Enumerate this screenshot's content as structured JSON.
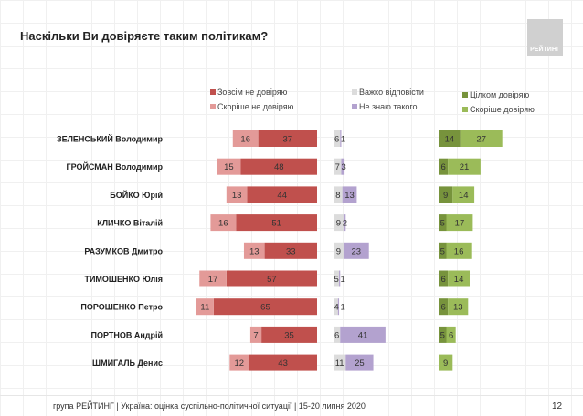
{
  "title": "Наскільки Ви довіряєте таким політикам?",
  "logo_text": "РЕЙТИНГ",
  "footer": "група РЕЙТИНГ |  Україна: оцінка суспільно-політичної  ситуації  | 15-20 липня  2020",
  "page_number": "12",
  "chart_data": {
    "type": "bar",
    "orientation": "horizontal",
    "stacked": true,
    "categories": [
      "ЗЕЛЕНСЬКИЙ Володимир",
      "ГРОЙСМАН Володимир",
      "БОЙКО Юрій",
      "КЛИЧКО Віталій",
      "РАЗУМКОВ Дмитро",
      "ТИМОШЕНКО Юлія",
      "ПОРОШЕНКО Петро",
      "ПОРТНОВ Андрій",
      "ШМИГАЛЬ Денис"
    ],
    "series": [
      {
        "name": "Зовсім не довіряю",
        "group": "distrust",
        "color": "#c0504d",
        "values": [
          37,
          48,
          44,
          51,
          33,
          57,
          65,
          35,
          43
        ]
      },
      {
        "name": "Скоріше не довіряю",
        "group": "distrust",
        "color": "#e39a98",
        "values": [
          16,
          15,
          13,
          16,
          13,
          17,
          11,
          7,
          12
        ]
      },
      {
        "name": "Важко відповісти",
        "group": "neutral",
        "color": "#dcdcdc",
        "values": [
          6,
          7,
          8,
          9,
          9,
          5,
          4,
          6,
          11
        ]
      },
      {
        "name": "Не знаю такого",
        "group": "neutral",
        "color": "#b3a2cf",
        "values": [
          1,
          3,
          13,
          2,
          23,
          1,
          1,
          41,
          25
        ]
      },
      {
        "name": "Цілком довіряю",
        "group": "trust",
        "color": "#77933c",
        "values": [
          14,
          6,
          9,
          5,
          5,
          6,
          6,
          5,
          null
        ]
      },
      {
        "name": "Скоріше довіряю",
        "group": "trust",
        "color": "#9bbb59",
        "values": [
          27,
          21,
          14,
          17,
          16,
          14,
          13,
          6,
          9
        ]
      }
    ],
    "legend_placement": "top",
    "grid": false
  }
}
